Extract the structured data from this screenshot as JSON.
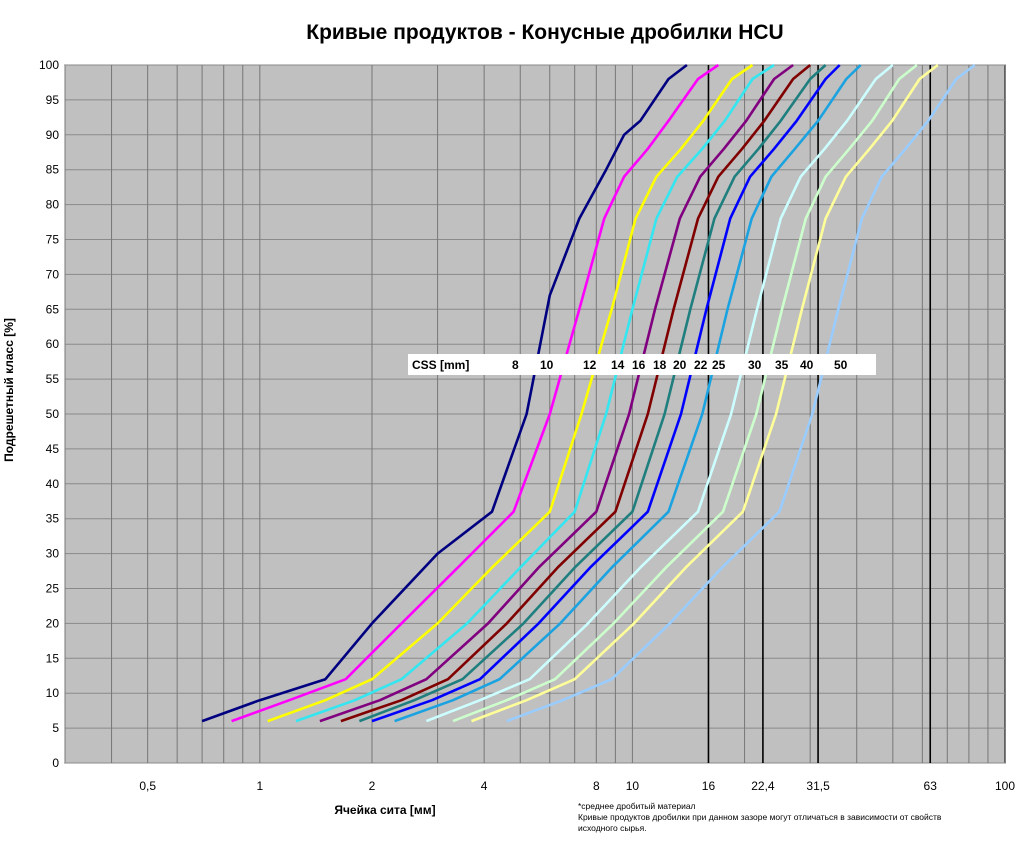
{
  "chart_data": {
    "type": "line",
    "title": "Кривые продуктов - Конусные дробилки HCU",
    "xlabel": "Ячейка сита [мм]",
    "ylabel": "Подрешетный класс [%]",
    "x_scale": "log",
    "xlim": [
      0.3,
      100
    ],
    "ylim": [
      0,
      100
    ],
    "grid": true,
    "x_tick_labels": [
      {
        "value": 0.5,
        "label": "0,5"
      },
      {
        "value": 1,
        "label": "1"
      },
      {
        "value": 2,
        "label": "2"
      },
      {
        "value": 4,
        "label": "4"
      },
      {
        "value": 8,
        "label": "8"
      },
      {
        "value": 10,
        "label": "10"
      },
      {
        "value": 16,
        "label": "16"
      },
      {
        "value": 22.4,
        "label": "22,4"
      },
      {
        "value": 31.5,
        "label": "31,5"
      },
      {
        "value": 63,
        "label": "63"
      },
      {
        "value": 100,
        "label": "100"
      }
    ],
    "y_ticks": [
      0,
      5,
      10,
      15,
      20,
      25,
      30,
      35,
      40,
      45,
      50,
      55,
      60,
      65,
      70,
      75,
      80,
      85,
      90,
      95,
      100
    ],
    "reference_lines_x": [
      16,
      22.4,
      31.5,
      63
    ],
    "legend": {
      "prefix": "CSS [mm]",
      "labels": [
        "8",
        "10",
        "12",
        "14",
        "16",
        "18",
        "20",
        "22",
        "25",
        "30",
        "35",
        "40",
        "50"
      ]
    },
    "series": [
      {
        "color": "#000080",
        "x": [
          0.7,
          1.0,
          1.5,
          2.0,
          3.0,
          4.2,
          5.2,
          6.0,
          7.2,
          8.5,
          9.5,
          10.5,
          12.5,
          14.0
        ],
        "y": [
          6,
          9,
          12,
          20,
          30,
          36,
          50,
          67,
          78,
          85,
          90,
          92,
          98,
          100
        ]
      },
      {
        "color": "#ff00ff",
        "x": [
          0.84,
          1.2,
          1.7,
          2.4,
          3.4,
          4.8,
          6.0,
          7.2,
          8.4,
          9.5,
          11.0,
          12.5,
          15.0,
          17.0
        ],
        "y": [
          6,
          9,
          12,
          20,
          28,
          36,
          50,
          65,
          78,
          84,
          88,
          92,
          98,
          100
        ]
      },
      {
        "color": "#ffff00",
        "x": [
          1.05,
          1.5,
          2.0,
          3.0,
          4.2,
          6.0,
          7.3,
          8.8,
          10.2,
          11.6,
          13.5,
          15.5,
          18.5,
          21.0
        ],
        "y": [
          6,
          9,
          12,
          20,
          28,
          36,
          50,
          65,
          78,
          84,
          88,
          92,
          98,
          100
        ]
      },
      {
        "color": "#33e6f0",
        "x": [
          1.25,
          1.8,
          2.4,
          3.6,
          5.0,
          7.0,
          8.5,
          10.0,
          11.6,
          13.2,
          15.4,
          17.7,
          21.0,
          24.0
        ],
        "y": [
          6,
          9,
          12,
          20,
          28,
          36,
          50,
          65,
          78,
          84,
          88,
          92,
          98,
          100
        ]
      },
      {
        "color": "#800080",
        "x": [
          1.45,
          2.1,
          2.8,
          4.1,
          5.6,
          8.0,
          9.8,
          11.5,
          13.4,
          15.2,
          17.6,
          20.2,
          24.0,
          27.0
        ],
        "y": [
          6,
          9,
          12,
          20,
          28,
          36,
          50,
          65,
          78,
          84,
          88,
          92,
          98,
          100
        ]
      },
      {
        "color": "#800000",
        "x": [
          1.65,
          2.4,
          3.2,
          4.6,
          6.3,
          9.0,
          11.0,
          12.9,
          15.0,
          17.0,
          19.7,
          22.6,
          27.0,
          30.0
        ],
        "y": [
          6,
          9,
          12,
          20,
          28,
          36,
          50,
          65,
          78,
          84,
          88,
          92,
          98,
          100
        ]
      },
      {
        "color": "#1f7f7f",
        "x": [
          1.85,
          2.6,
          3.5,
          5.1,
          7.0,
          10.0,
          12.2,
          14.3,
          16.6,
          18.8,
          21.8,
          25.0,
          30.0,
          33.0
        ],
        "y": [
          6,
          9,
          12,
          20,
          28,
          36,
          50,
          65,
          78,
          84,
          88,
          92,
          98,
          100
        ]
      },
      {
        "color": "#0000ff",
        "x": [
          2.0,
          2.9,
          3.9,
          5.6,
          7.7,
          11.0,
          13.5,
          15.8,
          18.3,
          20.7,
          24.0,
          27.6,
          33.0,
          36.0
        ],
        "y": [
          6,
          9,
          12,
          20,
          28,
          36,
          50,
          65,
          78,
          84,
          88,
          92,
          98,
          100
        ]
      },
      {
        "color": "#1aa3e0",
        "x": [
          2.3,
          3.3,
          4.4,
          6.4,
          8.8,
          12.5,
          15.4,
          18.0,
          20.9,
          23.6,
          27.3,
          31.5,
          37.5,
          41.0
        ],
        "y": [
          6,
          9,
          12,
          20,
          28,
          36,
          50,
          65,
          78,
          84,
          88,
          92,
          98,
          100
        ]
      },
      {
        "color": "#ccffff",
        "x": [
          2.8,
          3.9,
          5.3,
          7.6,
          10.5,
          15.0,
          18.4,
          21.6,
          25.0,
          28.3,
          32.8,
          37.7,
          45.0,
          50.0
        ],
        "y": [
          6,
          9,
          12,
          20,
          28,
          36,
          50,
          65,
          78,
          84,
          88,
          92,
          98,
          100
        ]
      },
      {
        "color": "#ccffcc",
        "x": [
          3.3,
          4.6,
          6.2,
          8.9,
          12.3,
          17.5,
          21.5,
          25.2,
          29.2,
          33.0,
          38.2,
          44.0,
          52.0,
          58.0
        ],
        "y": [
          6,
          9,
          12,
          20,
          28,
          36,
          50,
          65,
          78,
          84,
          88,
          92,
          98,
          100
        ]
      },
      {
        "color": "#ffff99",
        "x": [
          3.7,
          5.2,
          7.0,
          10.1,
          13.9,
          19.8,
          24.3,
          28.5,
          33.0,
          37.4,
          43.3,
          49.8,
          59.0,
          66.0
        ],
        "y": [
          6,
          9,
          12,
          20,
          28,
          36,
          50,
          65,
          78,
          84,
          88,
          92,
          98,
          100
        ]
      },
      {
        "color": "#99ccff",
        "x": [
          4.6,
          6.5,
          8.8,
          12.6,
          17.4,
          24.8,
          30.4,
          35.7,
          41.3,
          46.7,
          54.1,
          62.2,
          74.0,
          83.0
        ],
        "y": [
          6,
          9,
          12,
          20,
          28,
          36,
          50,
          65,
          78,
          84,
          88,
          92,
          98,
          100
        ]
      }
    ]
  },
  "footnote": {
    "line1": "*среднее дробитый материал",
    "line2": "Кривые продуктов дробилки при данном зазоре могут отличаться в зависимости от свойств",
    "line3": "исходного сырья."
  }
}
